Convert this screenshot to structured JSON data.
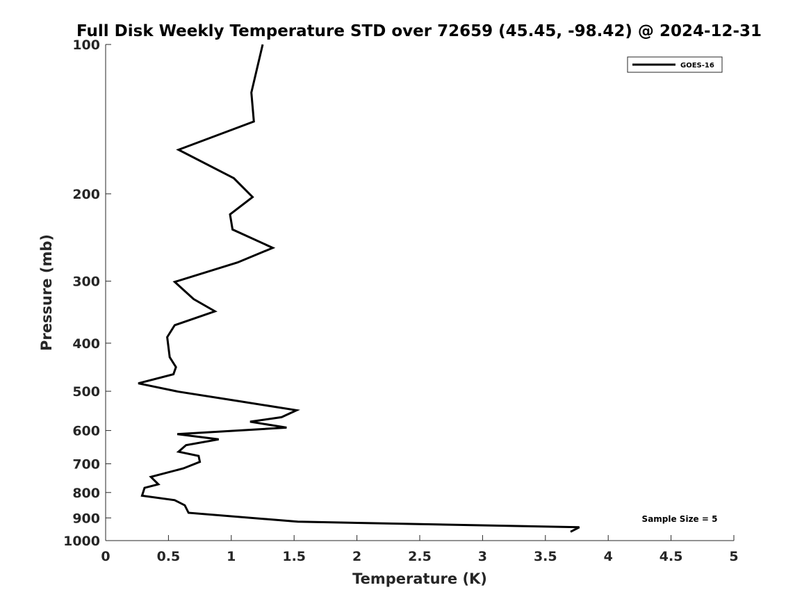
{
  "chart_data": {
    "type": "line",
    "title": "Full Disk Weekly Temperature STD over 72659 (45.45, -98.42) @ 2024-12-31",
    "xlabel": "Temperature (K)",
    "ylabel": "Pressure (mb)",
    "xlim": [
      0,
      5
    ],
    "ylim": [
      100,
      1000
    ],
    "y_scale": "log",
    "y_reversed": true,
    "x_ticks": [
      "0",
      "0.5",
      "1",
      "1.5",
      "2",
      "2.5",
      "3",
      "3.5",
      "4",
      "4.5",
      "5"
    ],
    "y_ticks": [
      "100",
      "200",
      "300",
      "400",
      "500",
      "600",
      "700",
      "800",
      "900",
      "1000"
    ],
    "grid": false,
    "legend_position": "top-right",
    "annotation": "Sample Size = 5",
    "series": [
      {
        "name": "GOES-16",
        "color": "#000000",
        "points": [
          [
            1.25,
            100
          ],
          [
            1.16,
            125
          ],
          [
            1.18,
            143
          ],
          [
            0.58,
            163
          ],
          [
            1.02,
            186
          ],
          [
            1.17,
            203
          ],
          [
            0.99,
            220
          ],
          [
            1.01,
            236
          ],
          [
            1.33,
            257
          ],
          [
            1.05,
            275
          ],
          [
            0.55,
            301
          ],
          [
            0.7,
            326
          ],
          [
            0.87,
            345
          ],
          [
            0.55,
            368
          ],
          [
            0.49,
            389
          ],
          [
            0.51,
            427
          ],
          [
            0.56,
            447
          ],
          [
            0.54,
            462
          ],
          [
            0.26,
            482
          ],
          [
            0.58,
            501
          ],
          [
            1.05,
            523
          ],
          [
            1.52,
            546
          ],
          [
            1.4,
            564
          ],
          [
            1.15,
            576
          ],
          [
            1.44,
            592
          ],
          [
            0.57,
            610
          ],
          [
            0.9,
            625
          ],
          [
            0.64,
            642
          ],
          [
            0.58,
            662
          ],
          [
            0.74,
            675
          ],
          [
            0.75,
            694
          ],
          [
            0.62,
            715
          ],
          [
            0.36,
            744
          ],
          [
            0.42,
            770
          ],
          [
            0.31,
            783
          ],
          [
            0.29,
            812
          ],
          [
            0.55,
            829
          ],
          [
            0.63,
            849
          ],
          [
            0.66,
            879
          ],
          [
            1.53,
            916
          ],
          [
            3.77,
            940
          ],
          [
            3.7,
            960
          ]
        ]
      }
    ]
  }
}
